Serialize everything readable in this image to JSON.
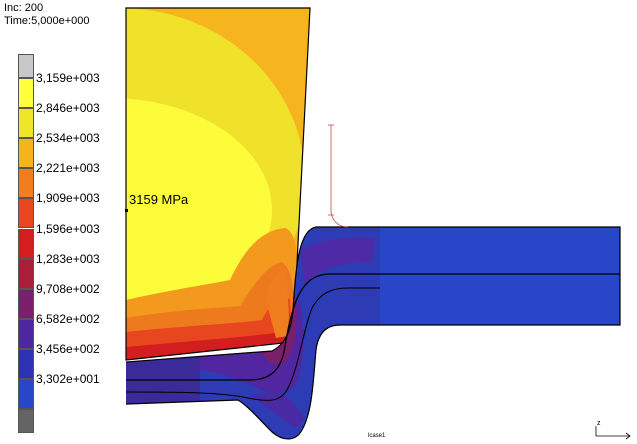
{
  "header": {
    "increment": "Inc: 200",
    "time": "Time:5,000e+000"
  },
  "legend": {
    "levels": [
      {
        "label": "",
        "color": "#c8c8c8"
      },
      {
        "label": "3,159e+003",
        "color": "#ffff3c"
      },
      {
        "label": "2,846e+003",
        "color": "#f0e628"
      },
      {
        "label": "2,534e+003",
        "color": "#f5b41e"
      },
      {
        "label": "2,221e+003",
        "color": "#f07d1e"
      },
      {
        "label": "1,909e+003",
        "color": "#e8461e"
      },
      {
        "label": "1,596e+003",
        "color": "#d21e1e"
      },
      {
        "label": "1,283e+003",
        "color": "#aa1e3c"
      },
      {
        "label": "9,708e+002",
        "color": "#7a1e6e"
      },
      {
        "label": "6,582e+002",
        "color": "#4e26a0"
      },
      {
        "label": "3,456e+002",
        "color": "#2d32b4"
      },
      {
        "label": "3,302e+001",
        "color": "#2846c8"
      },
      {
        "label": "",
        "color": "#646464"
      }
    ]
  },
  "annotation": {
    "text": "3159 MPa"
  },
  "footer": {
    "load_case": "lcase1",
    "axis": "z"
  }
}
